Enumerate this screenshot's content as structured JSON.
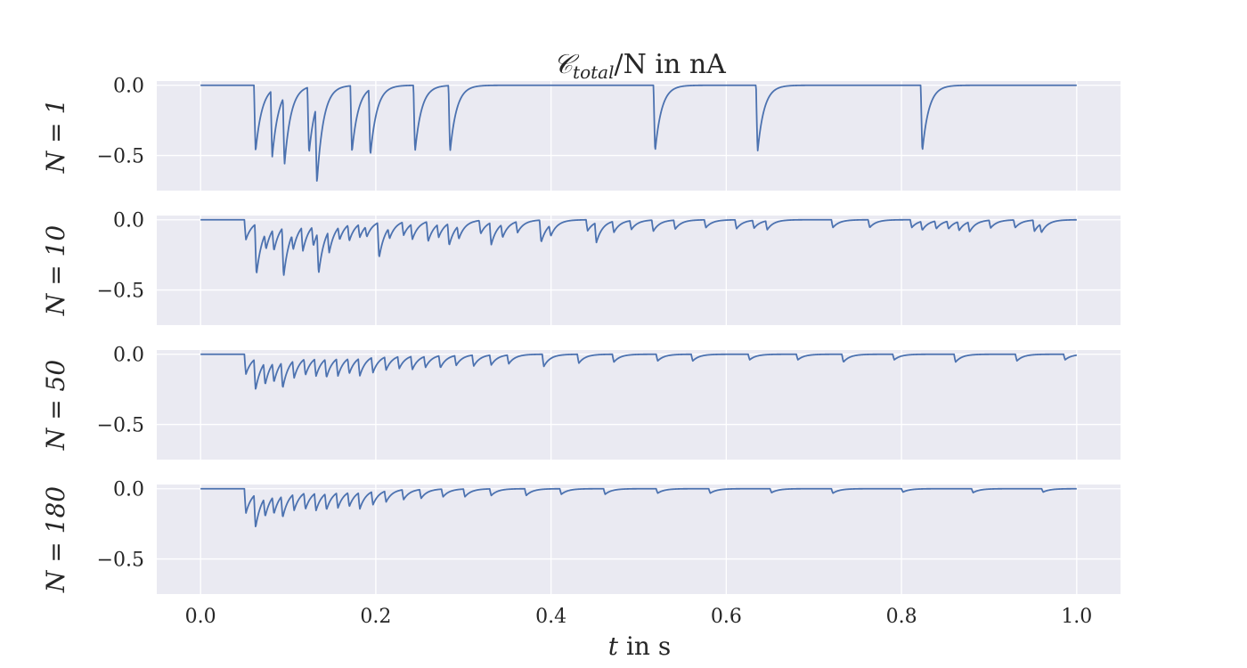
{
  "chart_data": {
    "type": "line",
    "title_main": "𝒞",
    "title_sub": "total",
    "title_rest": "/N in nA",
    "xlabel_var": "t",
    "xlabel_rest": " in s",
    "xlim": [
      -0.05,
      1.05
    ],
    "xticks": [
      "0.0",
      "0.2",
      "0.4",
      "0.6",
      "0.8",
      "1.0"
    ],
    "grid": true,
    "line_color": "#4c72b0",
    "background_color": "#eaeaf2",
    "panels": [
      {
        "ylabel": "N = 1",
        "ylim": [
          -0.75,
          0.03
        ],
        "yticks": [
          "0.0",
          "−0.5"
        ],
        "baseline": 0.0,
        "events": [
          {
            "t": 0.061,
            "a": -0.6
          },
          {
            "t": 0.08,
            "a": -0.6
          },
          {
            "t": 0.094,
            "a": -0.62
          },
          {
            "t": 0.122,
            "a": -0.6
          },
          {
            "t": 0.131,
            "a": -0.7
          },
          {
            "t": 0.171,
            "a": -0.6
          },
          {
            "t": 0.192,
            "a": -0.6
          },
          {
            "t": 0.243,
            "a": -0.6
          },
          {
            "t": 0.283,
            "a": -0.6
          },
          {
            "t": 0.517,
            "a": -0.6
          },
          {
            "t": 0.634,
            "a": -0.6
          },
          {
            "t": 0.822,
            "a": -0.6
          }
        ]
      },
      {
        "ylabel": "N = 10",
        "ylim": [
          -0.75,
          0.03
        ],
        "yticks": [
          "0.0",
          "−0.5"
        ],
        "baseline": 0.0,
        "events": [
          {
            "t": 0.05,
            "a": -0.18
          },
          {
            "t": 0.062,
            "a": -0.46
          },
          {
            "t": 0.073,
            "a": -0.15
          },
          {
            "t": 0.082,
            "a": -0.2
          },
          {
            "t": 0.093,
            "a": -0.45
          },
          {
            "t": 0.104,
            "a": -0.15
          },
          {
            "t": 0.115,
            "a": -0.22
          },
          {
            "t": 0.127,
            "a": -0.18
          },
          {
            "t": 0.133,
            "a": -0.38
          },
          {
            "t": 0.145,
            "a": -0.2
          },
          {
            "t": 0.157,
            "a": -0.12
          },
          {
            "t": 0.168,
            "a": -0.15
          },
          {
            "t": 0.18,
            "a": -0.12
          },
          {
            "t": 0.188,
            "a": -0.1
          },
          {
            "t": 0.202,
            "a": -0.32
          },
          {
            "t": 0.214,
            "a": -0.1
          },
          {
            "t": 0.23,
            "a": -0.12
          },
          {
            "t": 0.24,
            "a": -0.14
          },
          {
            "t": 0.258,
            "a": -0.18
          },
          {
            "t": 0.27,
            "a": -0.12
          },
          {
            "t": 0.282,
            "a": -0.2
          },
          {
            "t": 0.293,
            "a": -0.12
          },
          {
            "t": 0.318,
            "a": -0.12
          },
          {
            "t": 0.33,
            "a": -0.2
          },
          {
            "t": 0.343,
            "a": -0.12
          },
          {
            "t": 0.36,
            "a": -0.1
          },
          {
            "t": 0.387,
            "a": -0.2
          },
          {
            "t": 0.398,
            "a": -0.1
          },
          {
            "t": 0.44,
            "a": -0.1
          },
          {
            "t": 0.45,
            "a": -0.18
          },
          {
            "t": 0.47,
            "a": -0.1
          },
          {
            "t": 0.49,
            "a": -0.08
          },
          {
            "t": 0.515,
            "a": -0.1
          },
          {
            "t": 0.54,
            "a": -0.08
          },
          {
            "t": 0.575,
            "a": -0.07
          },
          {
            "t": 0.61,
            "a": -0.08
          },
          {
            "t": 0.63,
            "a": -0.07
          },
          {
            "t": 0.645,
            "a": -0.08
          },
          {
            "t": 0.72,
            "a": -0.07
          },
          {
            "t": 0.762,
            "a": -0.07
          },
          {
            "t": 0.81,
            "a": -0.07
          },
          {
            "t": 0.822,
            "a": -0.08
          },
          {
            "t": 0.838,
            "a": -0.07
          },
          {
            "t": 0.852,
            "a": -0.07
          },
          {
            "t": 0.864,
            "a": -0.08
          },
          {
            "t": 0.876,
            "a": -0.09
          },
          {
            "t": 0.9,
            "a": -0.07
          },
          {
            "t": 0.928,
            "a": -0.07
          },
          {
            "t": 0.95,
            "a": -0.1
          },
          {
            "t": 0.958,
            "a": -0.08
          }
        ]
      },
      {
        "ylabel": "N = 50",
        "ylim": [
          -0.75,
          0.03
        ],
        "yticks": [
          "0.0",
          "−0.5"
        ],
        "baseline": 0.0,
        "events": [
          {
            "t": 0.05,
            "a": -0.18
          },
          {
            "t": 0.061,
            "a": -0.28
          },
          {
            "t": 0.072,
            "a": -0.2
          },
          {
            "t": 0.082,
            "a": -0.18
          },
          {
            "t": 0.092,
            "a": -0.24
          },
          {
            "t": 0.105,
            "a": -0.16
          },
          {
            "t": 0.118,
            "a": -0.15
          },
          {
            "t": 0.13,
            "a": -0.16
          },
          {
            "t": 0.142,
            "a": -0.17
          },
          {
            "t": 0.155,
            "a": -0.16
          },
          {
            "t": 0.168,
            "a": -0.14
          },
          {
            "t": 0.18,
            "a": -0.16
          },
          {
            "t": 0.195,
            "a": -0.14
          },
          {
            "t": 0.21,
            "a": -0.12
          },
          {
            "t": 0.225,
            "a": -0.11
          },
          {
            "t": 0.24,
            "a": -0.12
          },
          {
            "t": 0.255,
            "a": -0.1
          },
          {
            "t": 0.272,
            "a": -0.11
          },
          {
            "t": 0.29,
            "a": -0.09
          },
          {
            "t": 0.31,
            "a": -0.1
          },
          {
            "t": 0.33,
            "a": -0.09
          },
          {
            "t": 0.35,
            "a": -0.08
          },
          {
            "t": 0.39,
            "a": -0.11
          },
          {
            "t": 0.43,
            "a": -0.08
          },
          {
            "t": 0.47,
            "a": -0.07
          },
          {
            "t": 0.52,
            "a": -0.06
          },
          {
            "t": 0.56,
            "a": -0.06
          },
          {
            "t": 0.625,
            "a": -0.05
          },
          {
            "t": 0.68,
            "a": -0.05
          },
          {
            "t": 0.732,
            "a": -0.07
          },
          {
            "t": 0.79,
            "a": -0.05
          },
          {
            "t": 0.86,
            "a": -0.07
          },
          {
            "t": 0.93,
            "a": -0.06
          },
          {
            "t": 0.985,
            "a": -0.05
          }
        ]
      },
      {
        "ylabel": "N = 180",
        "ylim": [
          -0.75,
          0.03
        ],
        "yticks": [
          "0.0",
          "−0.5"
        ],
        "baseline": 0.0,
        "events": [
          {
            "t": 0.05,
            "a": -0.22
          },
          {
            "t": 0.061,
            "a": -0.3
          },
          {
            "t": 0.072,
            "a": -0.17
          },
          {
            "t": 0.082,
            "a": -0.16
          },
          {
            "t": 0.092,
            "a": -0.2
          },
          {
            "t": 0.105,
            "a": -0.15
          },
          {
            "t": 0.118,
            "a": -0.15
          },
          {
            "t": 0.13,
            "a": -0.16
          },
          {
            "t": 0.142,
            "a": -0.15
          },
          {
            "t": 0.155,
            "a": -0.14
          },
          {
            "t": 0.168,
            "a": -0.13
          },
          {
            "t": 0.18,
            "a": -0.15
          },
          {
            "t": 0.195,
            "a": -0.12
          },
          {
            "t": 0.21,
            "a": -0.1
          },
          {
            "t": 0.23,
            "a": -0.09
          },
          {
            "t": 0.25,
            "a": -0.08
          },
          {
            "t": 0.275,
            "a": -0.07
          },
          {
            "t": 0.3,
            "a": -0.07
          },
          {
            "t": 0.33,
            "a": -0.06
          },
          {
            "t": 0.37,
            "a": -0.06
          },
          {
            "t": 0.41,
            "a": -0.05
          },
          {
            "t": 0.46,
            "a": -0.05
          },
          {
            "t": 0.52,
            "a": -0.04
          },
          {
            "t": 0.58,
            "a": -0.04
          },
          {
            "t": 0.65,
            "a": -0.035
          },
          {
            "t": 0.72,
            "a": -0.04
          },
          {
            "t": 0.8,
            "a": -0.03
          },
          {
            "t": 0.88,
            "a": -0.035
          },
          {
            "t": 0.96,
            "a": -0.03
          }
        ]
      }
    ]
  }
}
